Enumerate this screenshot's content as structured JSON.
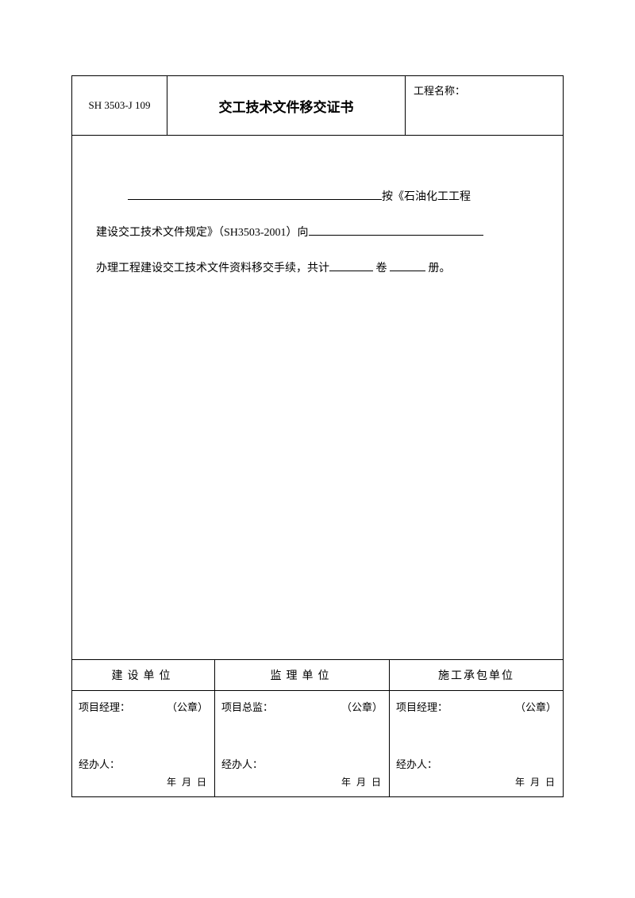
{
  "header": {
    "code": "SH 3503-J 109",
    "title": "交工技术文件移交证书",
    "project_name_label": "工程名称："
  },
  "body": {
    "text_after_line1": "按《石油化工工程",
    "line2_prefix": "建设交工技术文件规定》（SH3503-2001）向",
    "line3_prefix": "办理工程建设交工技术文件资料移交手续，共计",
    "volume_label": " 卷 ",
    "book_label": " 册。"
  },
  "signatures": {
    "col1": {
      "header": "建设单位",
      "role": "项目经理：",
      "seal": "（公章）",
      "handler": "经办人：",
      "date": "年  月  日"
    },
    "col2": {
      "header": "监理单位",
      "role": "项目总监：",
      "seal": "（公章）",
      "handler": "经办人：",
      "date": "年  月  日"
    },
    "col3": {
      "header": "施工承包单位",
      "role": "项目经理：",
      "seal": "（公章）",
      "handler": "经办人：",
      "date": "年  月  日"
    }
  },
  "style": {
    "letter_spacing_header3": "2px"
  }
}
